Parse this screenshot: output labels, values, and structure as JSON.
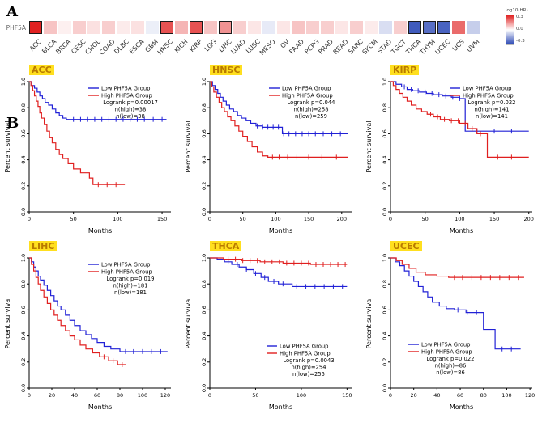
{
  "labels": {
    "panel_a": "A",
    "panel_b": "B"
  },
  "chart_data": {
    "heatmap": {
      "type": "heatmap",
      "row_label": "PHF5A",
      "legend": {
        "title": "log10(HR)",
        "ticks": [
          "0.3",
          "0.0",
          "-0.3"
        ]
      },
      "value_range": [
        -0.45,
        0.45
      ],
      "colors": {
        "high": "#e02121",
        "mid": "#ffffff",
        "low": "#2846b4"
      },
      "columns": [
        {
          "name": "ACC",
          "value": 0.45,
          "significant": true
        },
        {
          "name": "BLCA",
          "value": 0.12,
          "significant": false
        },
        {
          "name": "BRCA",
          "value": 0.03,
          "significant": false
        },
        {
          "name": "CESC",
          "value": 0.1,
          "significant": false
        },
        {
          "name": "CHOL",
          "value": 0.06,
          "significant": false
        },
        {
          "name": "COAD",
          "value": 0.1,
          "significant": false
        },
        {
          "name": "DLBC",
          "value": 0.04,
          "significant": false
        },
        {
          "name": "ESCA",
          "value": 0.06,
          "significant": false
        },
        {
          "name": "GBM",
          "value": -0.04,
          "significant": false
        },
        {
          "name": "HNSC",
          "value": 0.35,
          "significant": true
        },
        {
          "name": "KICH",
          "value": 0.15,
          "significant": false
        },
        {
          "name": "KIRP",
          "value": 0.35,
          "significant": true
        },
        {
          "name": "LGG",
          "value": 0.12,
          "significant": false
        },
        {
          "name": "LIHC",
          "value": 0.22,
          "significant": true
        },
        {
          "name": "LUAD",
          "value": 0.1,
          "significant": false
        },
        {
          "name": "LUSC",
          "value": 0.05,
          "significant": false
        },
        {
          "name": "MESO",
          "value": -0.05,
          "significant": false
        },
        {
          "name": "OV",
          "value": 0.05,
          "significant": false
        },
        {
          "name": "PAAD",
          "value": 0.12,
          "significant": false
        },
        {
          "name": "PCPG",
          "value": 0.1,
          "significant": false
        },
        {
          "name": "PRAD",
          "value": 0.1,
          "significant": false
        },
        {
          "name": "READ",
          "value": 0.05,
          "significant": false
        },
        {
          "name": "SARC",
          "value": 0.1,
          "significant": false
        },
        {
          "name": "SKCM",
          "value": 0.04,
          "significant": false
        },
        {
          "name": "STAD",
          "value": -0.08,
          "significant": false
        },
        {
          "name": "TGCT",
          "value": 0.1,
          "significant": false
        },
        {
          "name": "THCA",
          "value": -0.4,
          "significant": true
        },
        {
          "name": "THYM",
          "value": -0.35,
          "significant": true
        },
        {
          "name": "UCEC",
          "value": -0.38,
          "significant": true
        },
        {
          "name": "UCS",
          "value": 0.3,
          "significant": false
        },
        {
          "name": "UVM",
          "value": -0.12,
          "significant": false
        }
      ]
    },
    "km_common": {
      "type": "line",
      "ylabel": "Percent survival",
      "xlabel": "Months",
      "yticks": [
        "1.0",
        "0.8",
        "0.6",
        "0.4",
        "0.2",
        "0.0"
      ],
      "legend_low": "Low PHF5A Group",
      "legend_high": "High PHF5A Group",
      "colors": {
        "low": "#2121d6",
        "high": "#e01f1f"
      }
    },
    "km_plots": [
      {
        "title": "ACC",
        "logrank": "Logrank p=0.00017",
        "n_high": "n(high)=38",
        "n_low": "n(low)=38",
        "xmax": 160,
        "xticks": [
          0,
          50,
          100,
          150
        ],
        "legend_pos": "top-right",
        "low_steps": [
          [
            3,
            0.97
          ],
          [
            6,
            0.95
          ],
          [
            9,
            0.92
          ],
          [
            12,
            0.89
          ],
          [
            15,
            0.87
          ],
          [
            18,
            0.84
          ],
          [
            22,
            0.82
          ],
          [
            26,
            0.79
          ],
          [
            30,
            0.76
          ],
          [
            34,
            0.74
          ],
          [
            38,
            0.72
          ],
          [
            42,
            0.71
          ],
          [
            155,
            0.71
          ]
        ],
        "low_censors": [
          50,
          58,
          66,
          74,
          82,
          90,
          98,
          106,
          114,
          122,
          130,
          140,
          150
        ],
        "high_steps": [
          [
            2,
            0.97
          ],
          [
            4,
            0.93
          ],
          [
            6,
            0.89
          ],
          [
            8,
            0.85
          ],
          [
            10,
            0.81
          ],
          [
            12,
            0.76
          ],
          [
            14,
            0.72
          ],
          [
            17,
            0.67
          ],
          [
            20,
            0.62
          ],
          [
            23,
            0.57
          ],
          [
            26,
            0.53
          ],
          [
            30,
            0.48
          ],
          [
            34,
            0.44
          ],
          [
            38,
            0.41
          ],
          [
            44,
            0.37
          ],
          [
            50,
            0.33
          ],
          [
            58,
            0.3
          ],
          [
            68,
            0.26
          ],
          [
            72,
            0.21
          ],
          [
            108,
            0.21
          ]
        ],
        "high_censors": [
          78,
          88,
          98
        ]
      },
      {
        "title": "HNSC",
        "logrank": "Logrank p=0.044",
        "n_high": "n(high)=258",
        "n_low": "n(low)=259",
        "xmax": 215,
        "xticks": [
          0,
          50,
          100,
          150,
          200
        ],
        "legend_pos": "top-right",
        "low_steps": [
          [
            4,
            0.97
          ],
          [
            8,
            0.94
          ],
          [
            12,
            0.91
          ],
          [
            16,
            0.88
          ],
          [
            20,
            0.85
          ],
          [
            25,
            0.82
          ],
          [
            30,
            0.79
          ],
          [
            36,
            0.77
          ],
          [
            42,
            0.74
          ],
          [
            48,
            0.72
          ],
          [
            55,
            0.7
          ],
          [
            62,
            0.68
          ],
          [
            70,
            0.66
          ],
          [
            80,
            0.65
          ],
          [
            110,
            0.6
          ],
          [
            210,
            0.6
          ]
        ],
        "low_censors": [
          72,
          80,
          88,
          96,
          104,
          112,
          120,
          130,
          140,
          150,
          160,
          172,
          185,
          198
        ],
        "high_steps": [
          [
            3,
            0.96
          ],
          [
            6,
            0.92
          ],
          [
            10,
            0.88
          ],
          [
            14,
            0.84
          ],
          [
            18,
            0.8
          ],
          [
            22,
            0.77
          ],
          [
            27,
            0.73
          ],
          [
            32,
            0.7
          ],
          [
            38,
            0.66
          ],
          [
            44,
            0.62
          ],
          [
            50,
            0.58
          ],
          [
            57,
            0.54
          ],
          [
            64,
            0.5
          ],
          [
            72,
            0.46
          ],
          [
            80,
            0.43
          ],
          [
            88,
            0.42
          ],
          [
            210,
            0.42
          ]
        ],
        "high_censors": [
          95,
          105,
          118,
          132,
          150,
          170,
          192
        ]
      },
      {
        "title": "KIRP",
        "logrank": "Logrank p=0.022",
        "n_high": "n(high)=141",
        "n_low": "n(low)=141",
        "xmax": 205,
        "xticks": [
          0,
          50,
          100,
          150,
          200
        ],
        "legend_pos": "top-right",
        "low_steps": [
          [
            8,
            0.98
          ],
          [
            16,
            0.96
          ],
          [
            24,
            0.94
          ],
          [
            32,
            0.93
          ],
          [
            42,
            0.92
          ],
          [
            52,
            0.91
          ],
          [
            62,
            0.9
          ],
          [
            75,
            0.89
          ],
          [
            88,
            0.88
          ],
          [
            100,
            0.87
          ],
          [
            108,
            0.62
          ],
          [
            200,
            0.62
          ]
        ],
        "low_censors": [
          20,
          30,
          40,
          50,
          60,
          70,
          80,
          90,
          100,
          125,
          150,
          175
        ],
        "high_steps": [
          [
            4,
            0.97
          ],
          [
            8,
            0.94
          ],
          [
            13,
            0.91
          ],
          [
            18,
            0.88
          ],
          [
            24,
            0.85
          ],
          [
            30,
            0.82
          ],
          [
            37,
            0.79
          ],
          [
            45,
            0.77
          ],
          [
            53,
            0.75
          ],
          [
            62,
            0.73
          ],
          [
            72,
            0.71
          ],
          [
            85,
            0.7
          ],
          [
            100,
            0.68
          ],
          [
            112,
            0.64
          ],
          [
            125,
            0.6
          ],
          [
            140,
            0.42
          ],
          [
            200,
            0.42
          ]
        ],
        "high_censors": [
          58,
          68,
          78,
          88,
          98,
          108,
          118,
          130,
          155,
          175
        ]
      },
      {
        "title": "LIHC",
        "logrank": "Logrank p=0.019",
        "n_high": "n(high)=181",
        "n_low": "n(low)=181",
        "xmax": 125,
        "xticks": [
          0,
          20,
          40,
          60,
          80,
          100,
          120
        ],
        "legend_pos": "top-right",
        "low_steps": [
          [
            2,
            0.97
          ],
          [
            4,
            0.93
          ],
          [
            6,
            0.9
          ],
          [
            8,
            0.86
          ],
          [
            10,
            0.83
          ],
          [
            13,
            0.79
          ],
          [
            16,
            0.75
          ],
          [
            19,
            0.71
          ],
          [
            22,
            0.67
          ],
          [
            25,
            0.63
          ],
          [
            28,
            0.6
          ],
          [
            32,
            0.56
          ],
          [
            36,
            0.52
          ],
          [
            40,
            0.48
          ],
          [
            45,
            0.44
          ],
          [
            50,
            0.41
          ],
          [
            55,
            0.38
          ],
          [
            60,
            0.35
          ],
          [
            66,
            0.32
          ],
          [
            72,
            0.3
          ],
          [
            80,
            0.28
          ],
          [
            122,
            0.28
          ]
        ],
        "low_censors": [
          85,
          92,
          100,
          108,
          116
        ],
        "high_steps": [
          [
            2,
            0.95
          ],
          [
            4,
            0.9
          ],
          [
            6,
            0.85
          ],
          [
            8,
            0.8
          ],
          [
            10,
            0.75
          ],
          [
            13,
            0.7
          ],
          [
            16,
            0.65
          ],
          [
            19,
            0.6
          ],
          [
            22,
            0.56
          ],
          [
            25,
            0.52
          ],
          [
            28,
            0.48
          ],
          [
            32,
            0.44
          ],
          [
            36,
            0.4
          ],
          [
            40,
            0.37
          ],
          [
            45,
            0.33
          ],
          [
            50,
            0.3
          ],
          [
            56,
            0.27
          ],
          [
            62,
            0.24
          ],
          [
            70,
            0.21
          ],
          [
            78,
            0.18
          ],
          [
            85,
            0.18
          ]
        ],
        "high_censors": [
          66,
          74,
          82
        ]
      },
      {
        "title": "THCA",
        "logrank": "Logrank p=0.0043",
        "n_high": "n(high)=254",
        "n_low": "n(low)=255",
        "xmax": 155,
        "xticks": [
          0,
          50,
          100,
          150
        ],
        "legend_pos": "bottom-right",
        "low_steps": [
          [
            8,
            0.99
          ],
          [
            16,
            0.97
          ],
          [
            24,
            0.95
          ],
          [
            32,
            0.93
          ],
          [
            40,
            0.91
          ],
          [
            48,
            0.88
          ],
          [
            56,
            0.85
          ],
          [
            64,
            0.82
          ],
          [
            75,
            0.8
          ],
          [
            90,
            0.78
          ],
          [
            150,
            0.78
          ]
        ],
        "low_censors": [
          20,
          30,
          40,
          50,
          60,
          70,
          80,
          95,
          105,
          115,
          125,
          135,
          145
        ],
        "high_steps": [
          [
            15,
            0.99
          ],
          [
            35,
            0.98
          ],
          [
            55,
            0.97
          ],
          [
            80,
            0.96
          ],
          [
            110,
            0.95
          ],
          [
            150,
            0.95
          ]
        ],
        "high_censors": [
          20,
          28,
          36,
          44,
          52,
          60,
          68,
          76,
          84,
          92,
          100,
          108,
          116,
          124,
          132,
          140,
          148
        ]
      },
      {
        "title": "UCEC",
        "logrank": "Logrank p=0.022",
        "n_high": "n(high)=86",
        "n_low": "n(low)=86",
        "xmax": 122,
        "xticks": [
          0,
          20,
          40,
          60,
          80,
          100,
          120
        ],
        "legend_pos": "bottom-left",
        "low_steps": [
          [
            4,
            0.97
          ],
          [
            8,
            0.94
          ],
          [
            12,
            0.9
          ],
          [
            16,
            0.86
          ],
          [
            20,
            0.82
          ],
          [
            24,
            0.78
          ],
          [
            28,
            0.74
          ],
          [
            32,
            0.7
          ],
          [
            36,
            0.66
          ],
          [
            42,
            0.63
          ],
          [
            48,
            0.61
          ],
          [
            55,
            0.6
          ],
          [
            65,
            0.58
          ],
          [
            80,
            0.45
          ],
          [
            90,
            0.3
          ],
          [
            112,
            0.3
          ]
        ],
        "low_censors": [
          58,
          66,
          74,
          96,
          104
        ],
        "high_steps": [
          [
            5,
            0.98
          ],
          [
            10,
            0.95
          ],
          [
            16,
            0.92
          ],
          [
            22,
            0.89
          ],
          [
            30,
            0.87
          ],
          [
            40,
            0.86
          ],
          [
            50,
            0.85
          ],
          [
            115,
            0.85
          ]
        ],
        "high_censors": [
          55,
          62,
          70,
          78,
          86,
          94,
          102,
          110
        ]
      }
    ]
  }
}
